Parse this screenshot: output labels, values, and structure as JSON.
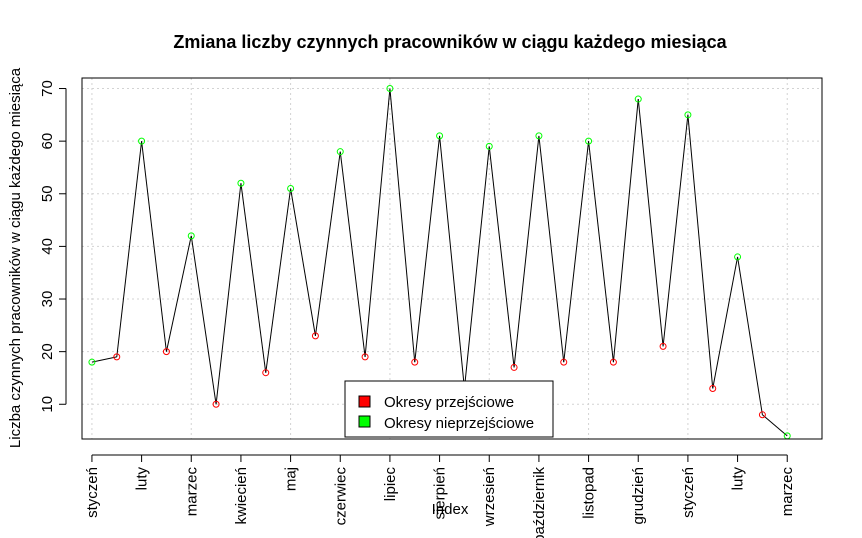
{
  "chart_data": {
    "type": "line",
    "title": "Zmiana liczby czynnych pracowników w ciągu każdego miesiąca",
    "xlabel": "Index",
    "ylabel": "Liczba czynnych pracowników w ciągu każdego miesiąca",
    "ylim": [
      3.4,
      72
    ],
    "xlim": [
      0.6,
      30.4
    ],
    "y_ticks": [
      10,
      20,
      30,
      40,
      50,
      60,
      70
    ],
    "x_tick_positions": [
      1,
      3,
      5,
      7,
      9,
      11,
      13,
      15,
      17,
      19,
      21,
      23,
      25,
      27,
      29
    ],
    "x_tick_labels": [
      "styczeń",
      "luty",
      "marzec",
      "kwiecień",
      "maj",
      "czerwiec",
      "lipiec",
      "sierpień",
      "wrzesień",
      "październik",
      "listopad",
      "grudzień",
      "styczeń",
      "luty",
      "marzec"
    ],
    "grid": true,
    "x": [
      1,
      2,
      3,
      4,
      5,
      6,
      7,
      8,
      9,
      10,
      11,
      12,
      13,
      14,
      15,
      16,
      17,
      18,
      19,
      20,
      21,
      22,
      23,
      24,
      25,
      26,
      27,
      28,
      29,
      30
    ],
    "values": [
      18,
      19,
      60,
      20,
      42,
      10,
      52,
      16,
      51,
      23,
      58,
      19,
      70,
      18,
      61,
      13,
      59,
      17,
      61,
      18,
      60,
      18,
      68,
      21,
      65,
      13,
      38,
      8,
      4,
      null
    ],
    "point_types": [
      "n",
      "p",
      "n",
      "p",
      "n",
      "p",
      "n",
      "p",
      "n",
      "p",
      "n",
      "p",
      "n",
      "p",
      "n",
      "p",
      "n",
      "p",
      "n",
      "p",
      "n",
      "p",
      "n",
      "p",
      "n",
      "p",
      "n",
      "p",
      "n",
      "n"
    ],
    "legend": {
      "position": "bottom-center",
      "entries": [
        {
          "label": "Okresy przejściowe",
          "color": "#ff0000"
        },
        {
          "label": "Okresy nieprzejściowe",
          "color": "#00ff00"
        }
      ]
    },
    "colors": {
      "transitional": "#ff0000",
      "non_transitional": "#00ff00",
      "line": "#000000",
      "grid": "#d3d3d3"
    }
  }
}
